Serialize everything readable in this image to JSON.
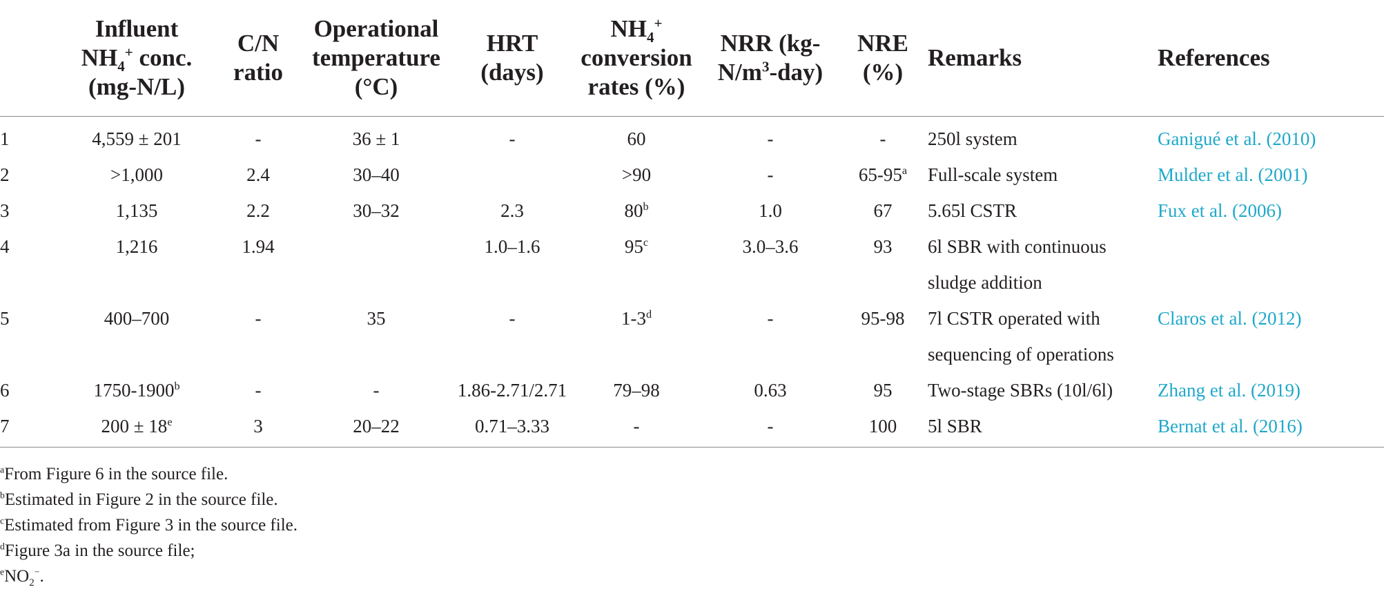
{
  "headers": {
    "influent_l1": "Influent",
    "influent_l2_pre": "NH",
    "influent_l2_sub": "4",
    "influent_l2_sup": "+",
    "influent_l2_post": " conc.",
    "influent_l3": "(mg-N/L)",
    "cn_l1": "C/N",
    "cn_l2": "ratio",
    "temp_l1": "Operational",
    "temp_l2": "temperature",
    "temp_l3": "(°C)",
    "hrt_l1": "HRT",
    "hrt_l2": "(days)",
    "conv_l1_pre": "NH",
    "conv_l1_sub": "4",
    "conv_l1_sup": "+",
    "conv_l2": "conversion",
    "conv_l3": "rates (%)",
    "nrr_l1": "NRR (kg-",
    "nrr_l2_pre": "N/m",
    "nrr_l2_sup": "3",
    "nrr_l2_post": "-day)",
    "nre_l1": "NRE",
    "nre_l2": "(%)",
    "remarks": "Remarks",
    "references": "References"
  },
  "rows": [
    {
      "n": "1",
      "influent": "4,559 ± 201",
      "influent_sup": "",
      "cn": "-",
      "temp": "36 ± 1",
      "hrt": "-",
      "conv": "60",
      "conv_sup": "",
      "nrr": "-",
      "nre": "-",
      "nre_sup": "",
      "remarks": "250l system",
      "ref": "Ganigué et al. (2010)"
    },
    {
      "n": "2",
      "influent": ">1,000",
      "influent_sup": "",
      "cn": "2.4",
      "temp": "30–40",
      "hrt": "",
      "conv": ">90",
      "conv_sup": "",
      "nrr": "-",
      "nre": "65-95",
      "nre_sup": "a",
      "remarks": "Full-scale system",
      "ref": "Mulder et al. (2001)"
    },
    {
      "n": "3",
      "influent": "1,135",
      "influent_sup": "",
      "cn": "2.2",
      "temp": "30–32",
      "hrt": "2.3",
      "conv": "80",
      "conv_sup": "b",
      "nrr": "1.0",
      "nre": "67",
      "nre_sup": "",
      "remarks": "5.65l CSTR",
      "ref": "Fux et al. (2006)"
    },
    {
      "n": "4",
      "influent": "1,216",
      "influent_sup": "",
      "cn": "1.94",
      "temp": "",
      "hrt": "1.0–1.6",
      "conv": "95",
      "conv_sup": "c",
      "nrr": "3.0–3.6",
      "nre": "93",
      "nre_sup": "",
      "remarks": "6l SBR with continuous",
      "remarks2": "sludge addition",
      "ref": ""
    },
    {
      "n": "5",
      "influent": "400–700",
      "influent_sup": "",
      "cn": "-",
      "temp": "35",
      "hrt": "-",
      "conv": "1-3",
      "conv_sup": "d",
      "nrr": "-",
      "nre": "95-98",
      "nre_sup": "",
      "remarks": "7l CSTR operated with",
      "remarks2": "sequencing of operations",
      "ref": "Claros et al. (2012)"
    },
    {
      "n": "6",
      "influent": "1750-1900",
      "influent_sup": "b",
      "cn": "-",
      "temp": "-",
      "hrt": "1.86-2.71/2.71",
      "conv": "79–98",
      "conv_sup": "",
      "nrr": "0.63",
      "nre": "95",
      "nre_sup": "",
      "remarks": "Two-stage SBRs (10l/6l)",
      "ref": "Zhang et al. (2019)"
    },
    {
      "n": "7",
      "influent": "200 ± 18",
      "influent_sup": "e",
      "cn": "3",
      "temp": "20–22",
      "hrt": "0.71–3.33",
      "conv": "-",
      "conv_sup": "",
      "nrr": "-",
      "nre": "100",
      "nre_sup": "",
      "remarks": "5l SBR",
      "ref": "Bernat et al. (2016)"
    }
  ],
  "notes": [
    {
      "mark": "a",
      "text": "From Figure 6 in the source file."
    },
    {
      "mark": "b",
      "text": "Estimated in Figure 2 in the source file."
    },
    {
      "mark": "c",
      "text": "Estimated from Figure 3 in the source file."
    },
    {
      "mark": "d",
      "text": "Figure 3a in the source file;"
    },
    {
      "mark": "e",
      "text": "NO",
      "sub": "2",
      "sup": "−",
      "tail": "."
    }
  ]
}
